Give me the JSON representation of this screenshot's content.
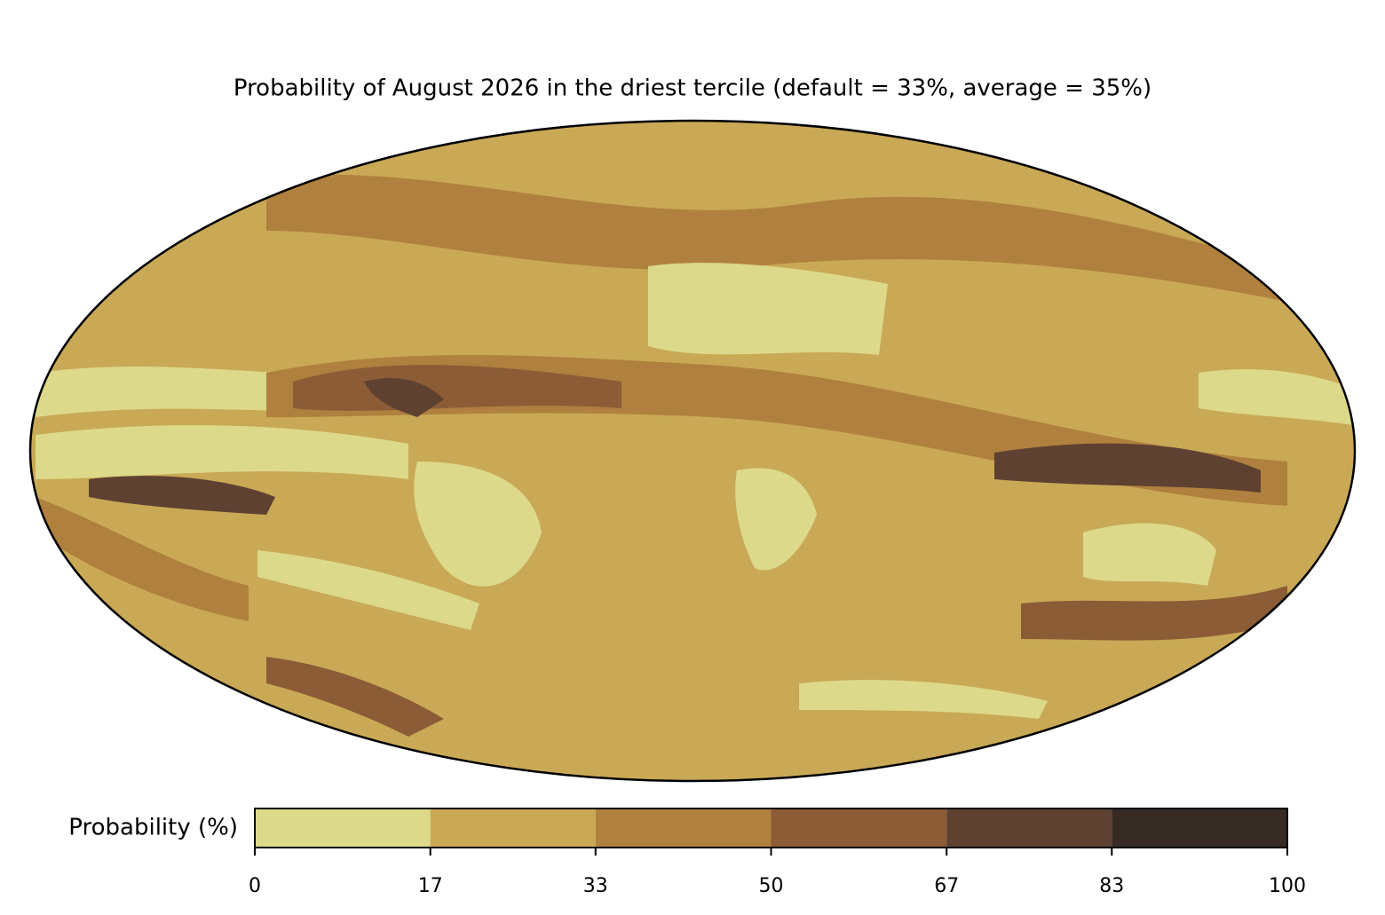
{
  "title": "Probability of August 2026 in the driest tercile (default = 33%, average = 35%)",
  "colorbar": {
    "label": "Probability (%)",
    "ticks": [
      0,
      17,
      33,
      50,
      67,
      83,
      100
    ],
    "colors": [
      "#dcd98a",
      "#c9a956",
      "#b0803e",
      "#8b5c36",
      "#5e4130",
      "#362a24"
    ]
  }
}
